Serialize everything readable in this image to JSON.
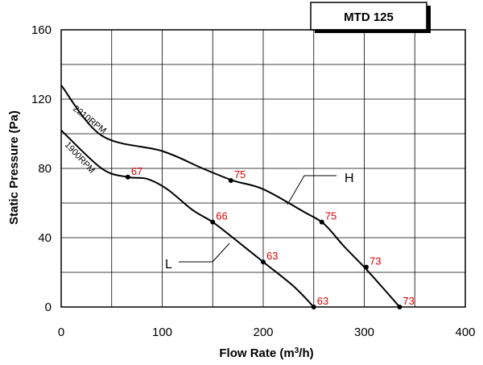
{
  "chart_data": {
    "type": "line",
    "title": "MTD 125",
    "xlabel": "Flow Rate (m",
    "xlabel_sup": "3",
    "xlabel_end": "/h)",
    "ylabel": "Static Pressure (Pa)",
    "xlim": [
      0,
      400
    ],
    "ylim": [
      0,
      160
    ],
    "x_ticks": [
      "0",
      "100",
      "200",
      "300",
      "400"
    ],
    "y_ticks": [
      "0",
      "40",
      "80",
      "120",
      "160"
    ],
    "x_tick_values": [
      0,
      100,
      200,
      300,
      400
    ],
    "y_tick_values": [
      0,
      40,
      80,
      120,
      160
    ],
    "grid": true,
    "series": [
      {
        "name": "H",
        "curve_label": "2210RPM",
        "x": [
          0,
          40,
          100,
          140,
          170,
          200,
          240,
          260,
          280,
          300,
          320,
          335
        ],
        "y": [
          128,
          99,
          90,
          80,
          73,
          68,
          55,
          48,
          35,
          23,
          10,
          0
        ],
        "points": [
          {
            "x": 168,
            "y": 73,
            "label": "75"
          },
          {
            "x": 258,
            "y": 49,
            "label": "75"
          },
          {
            "x": 302,
            "y": 23,
            "label": "73"
          },
          {
            "x": 335,
            "y": 0,
            "label": "73"
          }
        ]
      },
      {
        "name": "L",
        "curve_label": "1900RPM",
        "x": [
          0,
          40,
          66,
          85,
          105,
          130,
          150,
          170,
          200,
          230,
          250
        ],
        "y": [
          102,
          80,
          75,
          74,
          68,
          56,
          49,
          40,
          26,
          12,
          0
        ],
        "points": [
          {
            "x": 66,
            "y": 75,
            "label": "67"
          },
          {
            "x": 150,
            "y": 49,
            "label": "66"
          },
          {
            "x": 200,
            "y": 26,
            "label": "63"
          },
          {
            "x": 250,
            "y": 0,
            "label": "63"
          }
        ]
      }
    ]
  }
}
